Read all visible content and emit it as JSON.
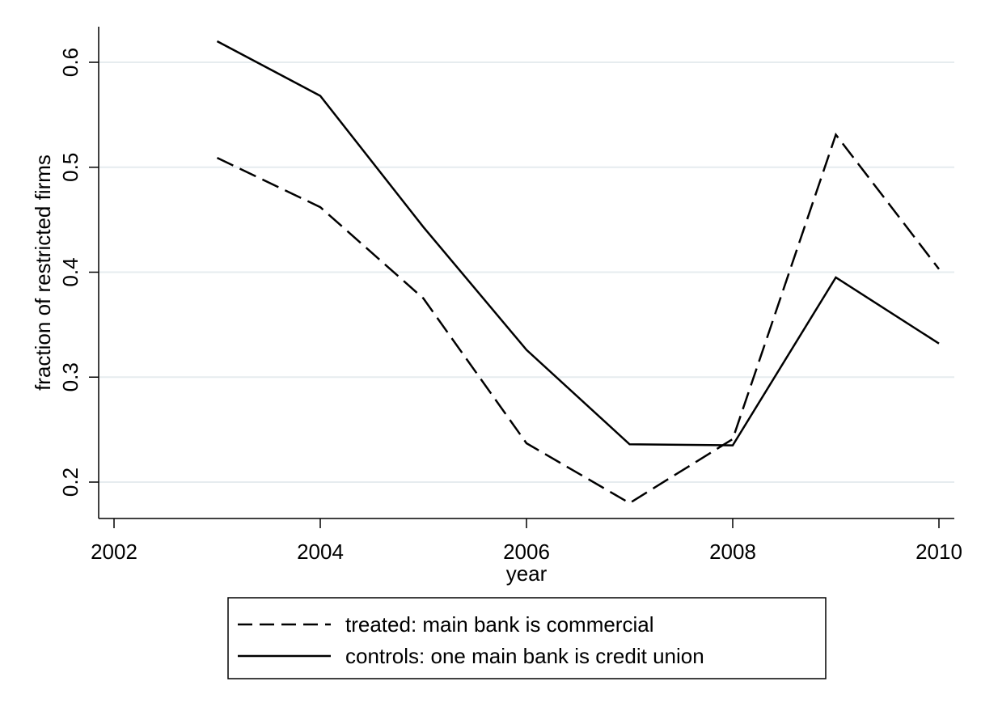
{
  "chart_data": {
    "type": "line",
    "title": "",
    "xlabel": "year",
    "ylabel": "fraction of restricted firms",
    "xlim": [
      2002,
      2010
    ],
    "ylim": [
      0.165,
      0.635
    ],
    "x_ticks": [
      2002,
      2004,
      2006,
      2008,
      2010
    ],
    "y_ticks": [
      0.2,
      0.3,
      0.4,
      0.5,
      0.6
    ],
    "y_tick_labels": [
      "0.2",
      "0.3",
      "0.4",
      "0.5",
      "0.6"
    ],
    "grid": "horizontal",
    "legend_position": "bottom",
    "x": [
      2003,
      2004,
      2005,
      2006,
      2007,
      2008,
      2009,
      2010
    ],
    "series": [
      {
        "name": "treated: main bank is commercial",
        "style": "dashed",
        "color": "#000000",
        "values": [
          0.509,
          0.462,
          0.375,
          0.237,
          0.18,
          0.241,
          0.531,
          0.403
        ]
      },
      {
        "name": "controls: one main bank is credit union",
        "style": "solid",
        "color": "#000000",
        "values": [
          0.62,
          0.568,
          0.443,
          0.326,
          0.236,
          0.235,
          0.395,
          0.332
        ]
      }
    ]
  }
}
